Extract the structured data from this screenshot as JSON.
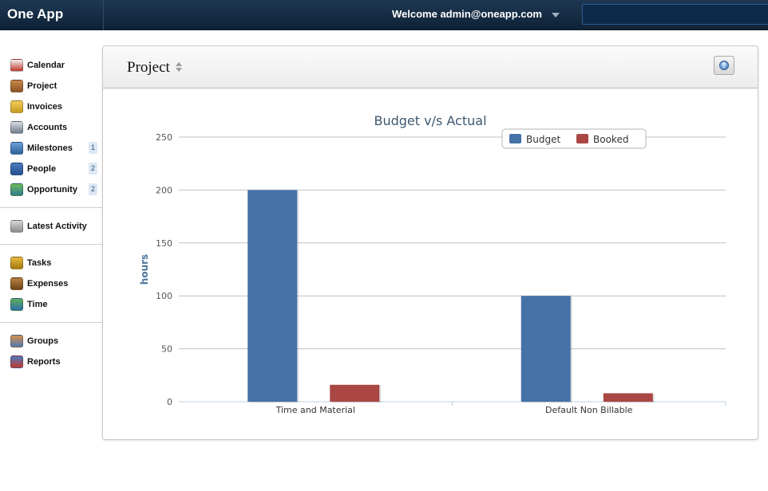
{
  "topbar": {
    "brand": "One App",
    "welcome": "Welcome admin@oneapp.com"
  },
  "sidebar": {
    "groups": [
      {
        "items": [
          {
            "label": "Calendar",
            "icon": "calendar-icon"
          },
          {
            "label": "Project",
            "icon": "project-icon"
          },
          {
            "label": "Invoices",
            "icon": "invoices-icon"
          },
          {
            "label": "Accounts",
            "icon": "accounts-icon"
          },
          {
            "label": "Milestones",
            "icon": "milestones-icon",
            "badge": "1"
          },
          {
            "label": "People",
            "icon": "people-icon",
            "badge": "2"
          },
          {
            "label": "Opportunity",
            "icon": "opportunity-icon",
            "badge": "2"
          }
        ]
      },
      {
        "items": [
          {
            "label": "Latest Activity",
            "icon": "latest-activity-icon"
          }
        ]
      },
      {
        "items": [
          {
            "label": "Tasks",
            "icon": "tasks-icon"
          },
          {
            "label": "Expenses",
            "icon": "expenses-icon"
          },
          {
            "label": "Time",
            "icon": "time-icon"
          }
        ]
      },
      {
        "items": [
          {
            "label": "Groups",
            "icon": "groups-icon"
          },
          {
            "label": "Reports",
            "icon": "reports-icon"
          }
        ]
      }
    ]
  },
  "panel": {
    "title": "Project",
    "help_icon": "help-icon"
  },
  "chart_data": {
    "type": "bar",
    "title": "Budget v/s Actual",
    "xlabel": "",
    "ylabel": "hours",
    "ylim": [
      0,
      250
    ],
    "yticks": [
      0,
      50,
      100,
      150,
      200,
      250
    ],
    "categories": [
      "Time and Material",
      "Default Non Billable"
    ],
    "series": [
      {
        "name": "Budget",
        "values": [
          200,
          100
        ],
        "color": "#4572a7"
      },
      {
        "name": "Booked",
        "values": [
          16,
          8
        ],
        "color": "#aa4643"
      }
    ],
    "grid": true,
    "legend_position": "top-right"
  }
}
